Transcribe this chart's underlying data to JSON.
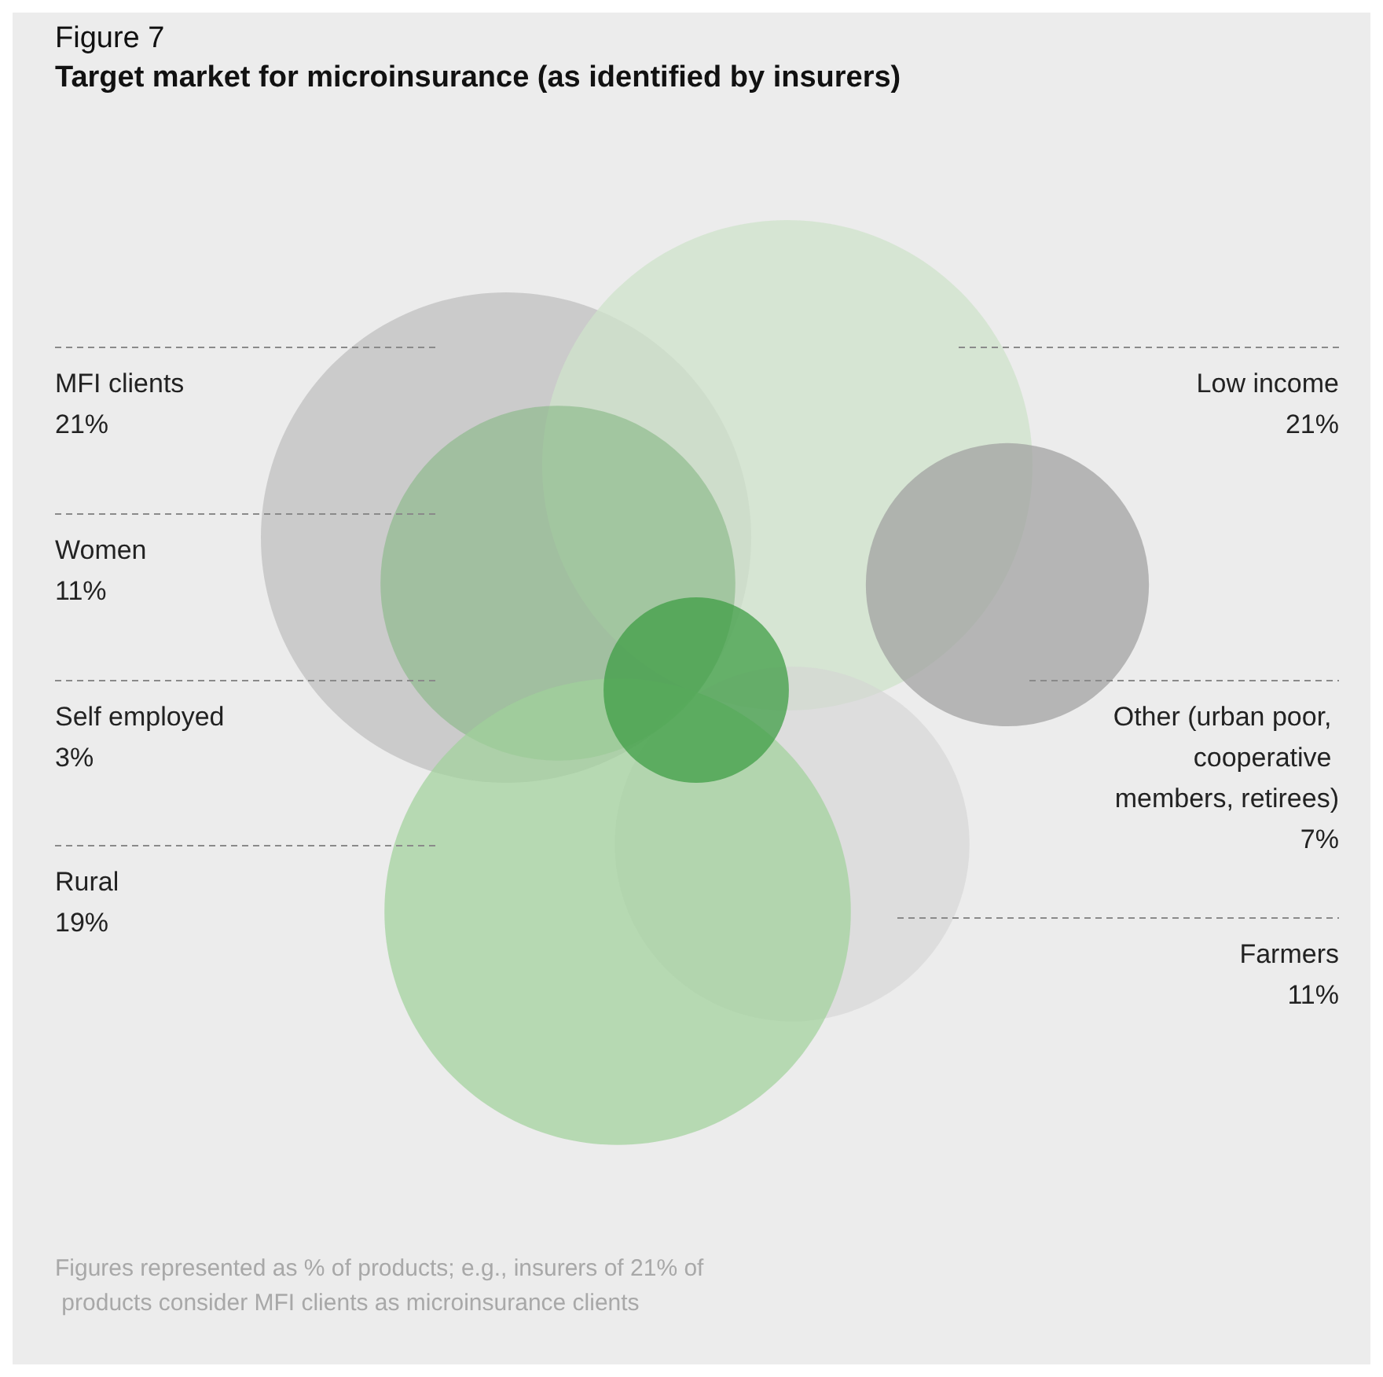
{
  "chart_data": {
    "type": "other",
    "title": "Figure 7",
    "subtitle": "Target market for microinsurance (as identified by insurers)",
    "categories": [
      "MFI clients",
      "Women",
      "Self employed",
      "Rural",
      "Low income",
      "Other (urban poor, cooperative members, retirees)",
      "Farmers"
    ],
    "values": [
      21,
      11,
      3,
      19,
      21,
      7,
      11
    ],
    "value_labels": [
      "21%",
      "11%",
      "3%",
      "19%",
      "21%",
      "7%",
      "11%"
    ],
    "colors": [
      "#bdbdbd",
      "#86b884",
      "#3f9e45",
      "#9fd19a",
      "#cfe3cb",
      "#9e9e9e",
      "#d3d3d3"
    ],
    "annotations": [
      "Figures represented as % of products; e.g., insurers of 21% of products consider MFI clients as microinsurance clients"
    ]
  }
}
